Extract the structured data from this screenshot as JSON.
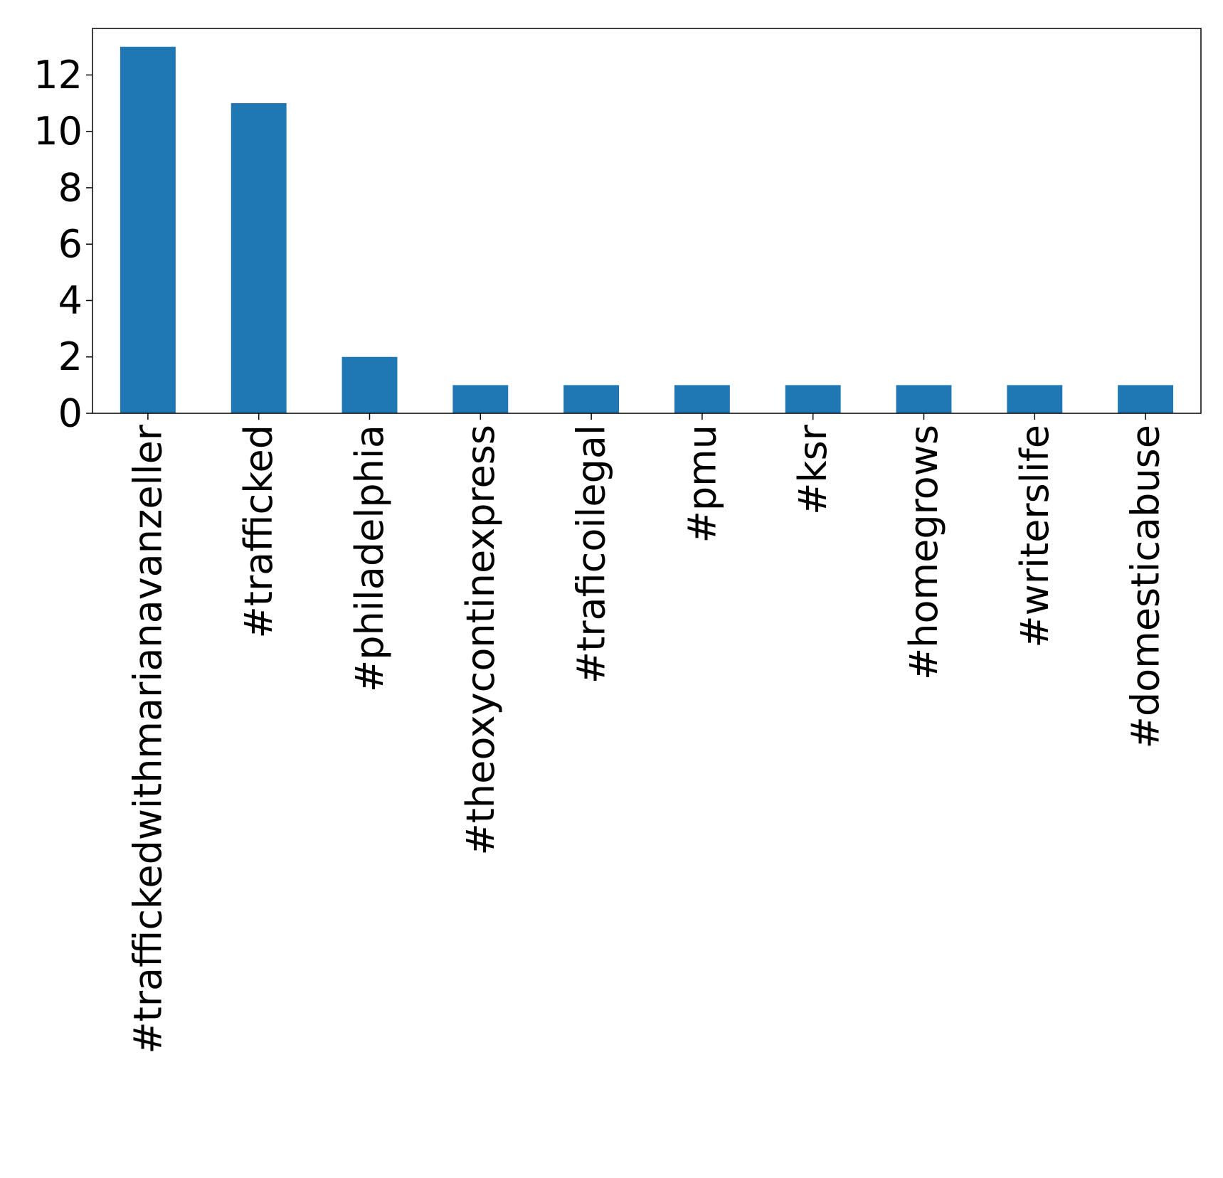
{
  "chart_data": {
    "type": "bar",
    "title": "",
    "xlabel": "",
    "ylabel": "",
    "categories": [
      "#traffickedwithmarianavanzeller",
      "#trafficked",
      "#philadelphia",
      "#theoxycontinexpress",
      "#traficoilegal",
      "#pmu",
      "#ksr",
      "#homegrows",
      "#writerslife",
      "#domesticabuse"
    ],
    "values": [
      13,
      11,
      2,
      1,
      1,
      1,
      1,
      1,
      1,
      1
    ],
    "ylim": [
      0,
      13.65
    ],
    "yticks": [
      0,
      2,
      4,
      6,
      8,
      10,
      12
    ],
    "bar_color": "#1f77b4",
    "grid": false,
    "legend": "none"
  }
}
